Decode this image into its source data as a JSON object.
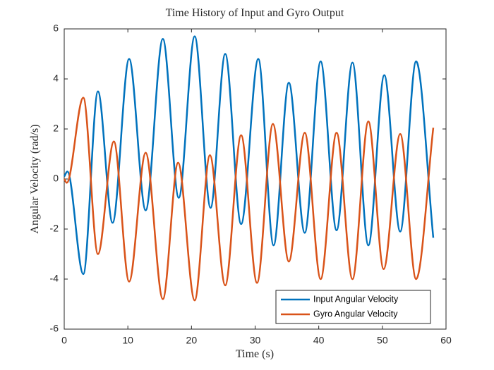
{
  "chart_data": {
    "type": "line",
    "title": "Time History of Input and Gyro Output",
    "x_label": "Time (s)",
    "y_label": "Angular Velocity (rad/s)",
    "xlim": [
      0,
      60
    ],
    "xticks": [
      0,
      10,
      20,
      30,
      40,
      50,
      60
    ],
    "ylim": [
      -6,
      6
    ],
    "yticks": [
      -6,
      -4,
      -2,
      0,
      2,
      4,
      6
    ],
    "legend_position": "lower right",
    "series": [
      {
        "name": "Input Angular Velocity",
        "color": "#0072bd",
        "x": [
          0,
          0.5,
          3.0,
          5.3,
          7.6,
          10.2,
          12.8,
          15.5,
          18.0,
          20.5,
          23.0,
          25.3,
          27.8,
          30.5,
          32.9,
          35.3,
          37.8,
          40.3,
          42.8,
          45.3,
          47.8,
          50.3,
          52.8,
          55.3,
          58.0
        ],
        "values": [
          0.1,
          0.3,
          -3.8,
          3.5,
          -1.75,
          4.8,
          -1.25,
          5.6,
          -0.75,
          5.7,
          -1.15,
          5.0,
          -1.8,
          4.8,
          -2.65,
          3.85,
          -2.15,
          4.7,
          -2.05,
          4.65,
          -2.65,
          4.15,
          -2.1,
          4.7,
          -2.35
        ]
      },
      {
        "name": "Gyro Angular Velocity",
        "color": "#d95319",
        "x": [
          0,
          0.4,
          3.0,
          5.3,
          7.8,
          10.2,
          12.8,
          15.5,
          17.9,
          20.5,
          22.9,
          25.3,
          27.8,
          30.3,
          32.8,
          35.3,
          37.8,
          40.3,
          42.8,
          45.3,
          47.8,
          50.2,
          52.8,
          55.3,
          58.0
        ],
        "values": [
          0.0,
          -0.15,
          3.25,
          -3.0,
          1.5,
          -4.1,
          1.05,
          -4.8,
          0.65,
          -4.85,
          0.95,
          -4.25,
          1.75,
          -4.15,
          2.2,
          -3.3,
          1.85,
          -4.0,
          1.85,
          -4.0,
          2.3,
          -3.6,
          1.8,
          -4.0,
          2.05
        ]
      }
    ]
  }
}
